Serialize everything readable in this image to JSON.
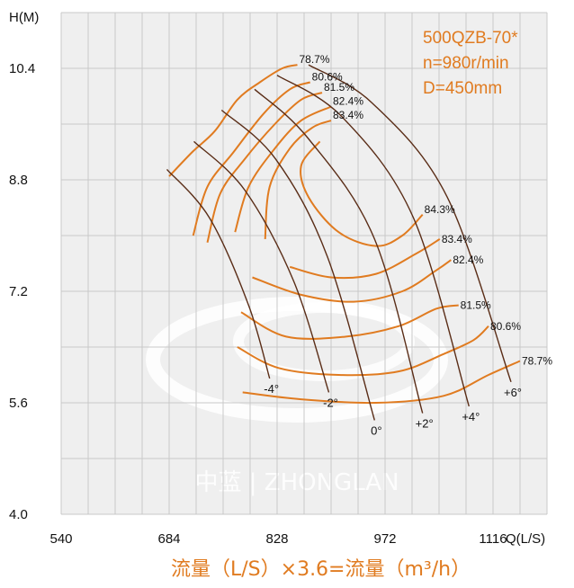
{
  "chart_data": {
    "type": "line",
    "title": "",
    "xlabel": "Q(L/S)",
    "ylabel": "H(M)",
    "xlim": [
      540,
      1188
    ],
    "ylim": [
      4.0,
      11.2
    ],
    "x_ticks": [
      "540",
      "684",
      "828",
      "972",
      "1116"
    ],
    "y_ticks": [
      "4.0",
      "5.6",
      "7.2",
      "8.8",
      "10.4"
    ],
    "grid": true,
    "info": [
      "500QZB-70*",
      "n=980r/min",
      "D=450mm"
    ],
    "watermark": "中蓝 | ZHONGLAN",
    "footer": "流量（L/S）×3.6=流量（m³/h）",
    "colors": {
      "efficiency": "#e07b20",
      "blade": "#5a2d17",
      "info": "#e07b20"
    },
    "blade_angle_curves": [
      {
        "label": "-4°",
        "points": [
          [
            681,
            8.95
          ],
          [
            738,
            8.25
          ],
          [
            790,
            7.0
          ],
          [
            818,
            5.95
          ]
        ]
      },
      {
        "label": "-2°",
        "points": [
          [
            717,
            9.35
          ],
          [
            785,
            8.65
          ],
          [
            850,
            7.35
          ],
          [
            897,
            5.75
          ]
        ]
      },
      {
        "label": "0°",
        "points": [
          [
            754,
            9.8
          ],
          [
            826,
            9.1
          ],
          [
            895,
            7.7
          ],
          [
            958,
            5.35
          ]
        ]
      },
      {
        "label": "+2°",
        "points": [
          [
            798,
            10.1
          ],
          [
            869,
            9.4
          ],
          [
            958,
            7.95
          ],
          [
            1022,
            5.45
          ]
        ]
      },
      {
        "label": "+4°",
        "points": [
          [
            828,
            10.3
          ],
          [
            915,
            9.7
          ],
          [
            1010,
            8.25
          ],
          [
            1084,
            5.55
          ]
        ]
      },
      {
        "label": "+6°",
        "points": [
          [
            870,
            10.45
          ],
          [
            955,
            9.9
          ],
          [
            1055,
            8.55
          ],
          [
            1140,
            5.9
          ]
        ]
      }
    ],
    "efficiency_contours": [
      {
        "label": "78.7%",
        "points": [
          [
            684,
            8.85
          ],
          [
            715,
            9.2
          ],
          [
            745,
            9.5
          ],
          [
            775,
            9.95
          ],
          [
            805,
            10.2
          ],
          [
            835,
            10.4
          ],
          [
            855,
            10.45
          ]
        ],
        "points_low": [
          [
            782,
            5.75
          ],
          [
            860,
            5.65
          ],
          [
            960,
            5.6
          ],
          [
            1050,
            5.7
          ],
          [
            1110,
            6.0
          ],
          [
            1152,
            6.2
          ]
        ]
      },
      {
        "label": "80.6%",
        "points": [
          [
            716,
            8.0
          ],
          [
            735,
            8.7
          ],
          [
            770,
            9.2
          ],
          [
            810,
            9.75
          ],
          [
            845,
            10.1
          ],
          [
            872,
            10.2
          ]
        ],
        "points_low": [
          [
            775,
            6.4
          ],
          [
            830,
            6.1
          ],
          [
            910,
            6.0
          ],
          [
            990,
            6.05
          ],
          [
            1050,
            6.3
          ],
          [
            1090,
            6.5
          ],
          [
            1110,
            6.7
          ]
        ]
      },
      {
        "label": "81.5%",
        "points": [
          [
            735,
            7.9
          ],
          [
            752,
            8.6
          ],
          [
            785,
            9.1
          ],
          [
            825,
            9.6
          ],
          [
            860,
            9.95
          ],
          [
            888,
            10.05
          ]
        ],
        "points_low": [
          [
            780,
            6.9
          ],
          [
            840,
            6.55
          ],
          [
            920,
            6.55
          ],
          [
            990,
            6.7
          ],
          [
            1040,
            6.95
          ],
          [
            1070,
            7.0
          ]
        ]
      },
      {
        "label": "82.4%",
        "points": [
          [
            772,
            8.05
          ],
          [
            790,
            8.7
          ],
          [
            825,
            9.25
          ],
          [
            860,
            9.65
          ],
          [
            900,
            9.85
          ]
        ],
        "points_low": [
          [
            795,
            7.4
          ],
          [
            860,
            7.15
          ],
          [
            930,
            7.05
          ],
          [
            995,
            7.2
          ],
          [
            1040,
            7.5
          ],
          [
            1060,
            7.65
          ]
        ]
      },
      {
        "label": "83.4%",
        "points": [
          [
            812,
            7.95
          ],
          [
            818,
            8.7
          ],
          [
            845,
            9.25
          ],
          [
            875,
            9.55
          ],
          [
            900,
            9.65
          ]
        ],
        "points_low": [
          [
            845,
            7.55
          ],
          [
            900,
            7.4
          ],
          [
            960,
            7.45
          ],
          [
            1015,
            7.75
          ],
          [
            1045,
            7.95
          ]
        ]
      },
      {
        "label": "84.3%",
        "points": [
          [
            885,
            9.35
          ],
          [
            860,
            9.0
          ],
          [
            870,
            8.55
          ],
          [
            910,
            8.05
          ],
          [
            960,
            7.85
          ],
          [
            995,
            8.0
          ],
          [
            1022,
            8.3
          ]
        ]
      }
    ]
  }
}
